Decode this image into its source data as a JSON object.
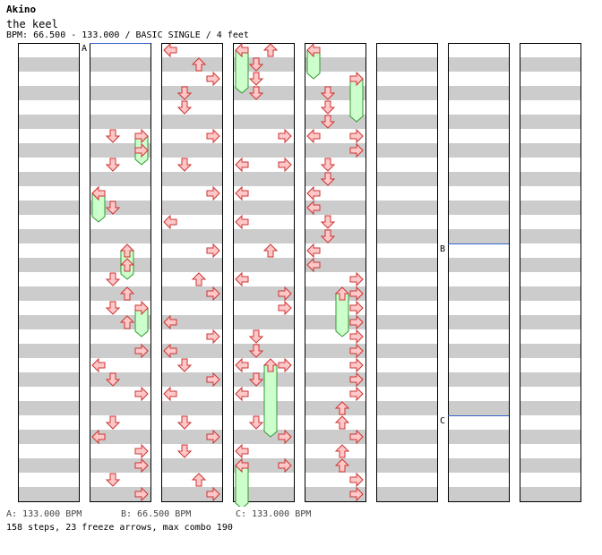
{
  "header": {
    "artist": "Akino",
    "title": "the keel",
    "info": "BPM: 66.500 - 133.000 / BASIC SINGLE / 4 feet"
  },
  "legend": {
    "a": "A: 133.000 BPM",
    "b": "B: 66.500 BPM",
    "c": "C: 133.000 BPM"
  },
  "summary": "158 steps, 23 freeze arrows, max combo 190",
  "bpm_markers": [
    {
      "label": "A",
      "column": 1,
      "row": 0
    },
    {
      "label": "B",
      "column": 6,
      "row": 14
    },
    {
      "label": "C",
      "column": 6,
      "row": 26
    }
  ],
  "colors": {
    "arrow_fill": "#ffc8c8",
    "arrow_stroke": "#cc3333",
    "shock_fill": "#f0c0f0",
    "shock_stroke": "#993399",
    "freeze_fill": "#ccffcc",
    "freeze_stroke": "#339933",
    "stripe": "#cccccc",
    "bpm_line": "#3366cc"
  },
  "chart_data": {
    "type": "step_chart",
    "columns": 8,
    "rows_per_column": 32,
    "lanes": [
      "left",
      "down",
      "up",
      "right"
    ],
    "steps": [
      [
        1,
        6,
        "d"
      ],
      [
        1,
        7,
        "r"
      ],
      [
        1,
        8,
        "d"
      ],
      [
        1,
        10,
        "l"
      ],
      [
        1,
        11,
        "d"
      ],
      [
        1,
        15,
        "u"
      ],
      [
        1,
        16,
        "d"
      ],
      [
        1,
        17,
        "u"
      ],
      [
        1,
        18,
        "d"
      ],
      [
        1,
        19,
        "u"
      ],
      [
        1,
        21,
        "r"
      ],
      [
        1,
        22,
        "l"
      ],
      [
        1,
        23,
        "d"
      ],
      [
        1,
        24,
        "r"
      ],
      [
        1,
        26,
        "d"
      ],
      [
        1,
        27,
        "l"
      ],
      [
        1,
        28,
        "r"
      ],
      [
        1,
        29,
        "r"
      ],
      [
        1,
        30,
        "d"
      ],
      [
        1,
        31,
        "r"
      ],
      [
        2,
        0,
        "l"
      ],
      [
        2,
        1,
        "u"
      ],
      [
        2,
        2,
        "r"
      ],
      [
        2,
        3,
        "d"
      ],
      [
        2,
        4,
        "d"
      ],
      [
        2,
        6,
        "r"
      ],
      [
        2,
        8,
        "d"
      ],
      [
        2,
        10,
        "r"
      ],
      [
        2,
        12,
        "l"
      ],
      [
        2,
        14,
        "r"
      ],
      [
        2,
        16,
        "u"
      ],
      [
        2,
        17,
        "r"
      ],
      [
        2,
        19,
        "l"
      ],
      [
        2,
        20,
        "r"
      ],
      [
        2,
        21,
        "l"
      ],
      [
        2,
        22,
        "d"
      ],
      [
        2,
        23,
        "r"
      ],
      [
        2,
        24,
        "l"
      ],
      [
        2,
        26,
        "d"
      ],
      [
        2,
        27,
        "r"
      ],
      [
        2,
        28,
        "d"
      ],
      [
        2,
        30,
        "u"
      ],
      [
        2,
        31,
        "r"
      ],
      [
        3,
        0,
        "u"
      ],
      [
        3,
        1,
        "d"
      ],
      [
        3,
        2,
        "d"
      ],
      [
        3,
        3,
        "d"
      ],
      [
        3,
        6,
        "r"
      ],
      [
        3,
        8,
        "l"
      ],
      [
        3,
        8,
        "r"
      ],
      [
        3,
        10,
        "l"
      ],
      [
        3,
        12,
        "l"
      ],
      [
        3,
        14,
        "u"
      ],
      [
        3,
        16,
        "l"
      ],
      [
        3,
        17,
        "r"
      ],
      [
        3,
        18,
        "r"
      ],
      [
        3,
        20,
        "d"
      ],
      [
        3,
        21,
        "d"
      ],
      [
        3,
        22,
        "l"
      ],
      [
        3,
        22,
        "r"
      ],
      [
        3,
        23,
        "d"
      ],
      [
        3,
        24,
        "l"
      ],
      [
        3,
        26,
        "d"
      ],
      [
        3,
        27,
        "r"
      ],
      [
        3,
        28,
        "l"
      ],
      [
        3,
        29,
        "r"
      ],
      [
        4,
        3,
        "d"
      ],
      [
        4,
        4,
        "d"
      ],
      [
        4,
        5,
        "d"
      ],
      [
        4,
        6,
        "l"
      ],
      [
        4,
        6,
        "r"
      ],
      [
        4,
        7,
        "r"
      ],
      [
        4,
        8,
        "d"
      ],
      [
        4,
        9,
        "d"
      ],
      [
        4,
        10,
        "l"
      ],
      [
        4,
        11,
        "l"
      ],
      [
        4,
        12,
        "d"
      ],
      [
        4,
        13,
        "d"
      ],
      [
        4,
        14,
        "l"
      ],
      [
        4,
        15,
        "l"
      ],
      [
        4,
        16,
        "r"
      ],
      [
        4,
        17,
        "r"
      ],
      [
        4,
        18,
        "r"
      ],
      [
        4,
        19,
        "r"
      ],
      [
        4,
        20,
        "r"
      ],
      [
        4,
        21,
        "r"
      ],
      [
        4,
        22,
        "r"
      ],
      [
        4,
        23,
        "r"
      ],
      [
        4,
        24,
        "r"
      ],
      [
        4,
        25,
        "u"
      ],
      [
        4,
        26,
        "u"
      ],
      [
        4,
        27,
        "r"
      ],
      [
        4,
        28,
        "u"
      ],
      [
        4,
        29,
        "u"
      ],
      [
        4,
        30,
        "r"
      ],
      [
        4,
        31,
        "r"
      ]
    ],
    "freezes": [
      [
        1,
        6,
        8,
        "r"
      ],
      [
        1,
        10,
        12,
        "l"
      ],
      [
        1,
        14,
        16,
        "u"
      ],
      [
        1,
        18,
        20,
        "r"
      ],
      [
        3,
        0,
        3,
        "l"
      ],
      [
        3,
        22,
        27,
        "u"
      ],
      [
        3,
        29,
        32,
        "l"
      ],
      [
        4,
        0,
        2,
        "l"
      ],
      [
        4,
        2,
        5,
        "r"
      ],
      [
        4,
        17,
        20,
        "u"
      ]
    ]
  }
}
